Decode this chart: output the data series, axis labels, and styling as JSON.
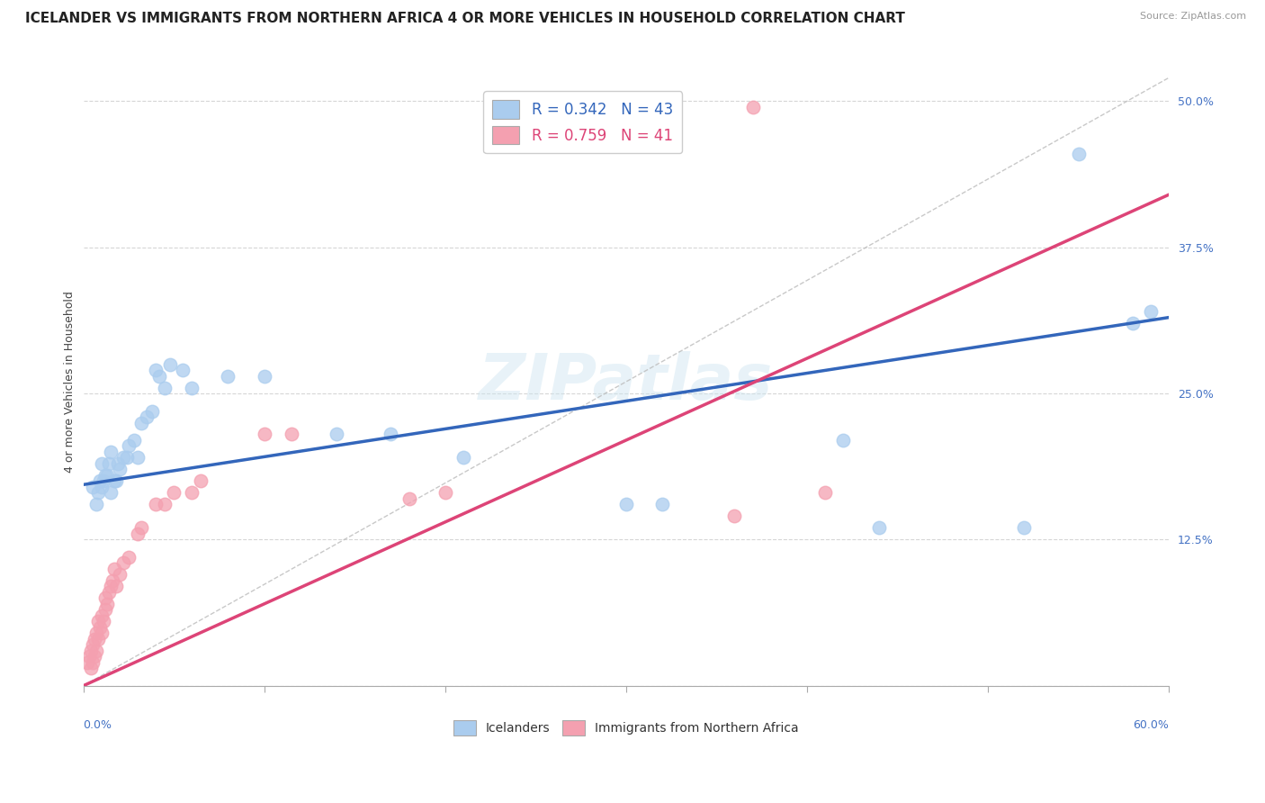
{
  "title": "ICELANDER VS IMMIGRANTS FROM NORTHERN AFRICA 4 OR MORE VEHICLES IN HOUSEHOLD CORRELATION CHART",
  "source": "Source: ZipAtlas.com",
  "ylabel": "4 or more Vehicles in Household",
  "yticks": [
    0.0,
    0.125,
    0.25,
    0.375,
    0.5
  ],
  "ytick_labels": [
    "",
    "12.5%",
    "25.0%",
    "37.5%",
    "50.0%"
  ],
  "xmin": 0.0,
  "xmax": 0.6,
  "ymin": 0.0,
  "ymax": 0.52,
  "legend1_label": "R = 0.342   N = 43",
  "legend2_label": "R = 0.759   N = 41",
  "legend_bottom": "Icelanders",
  "legend_bottom2": "Immigrants from Northern Africa",
  "blue_color": "#aaccee",
  "pink_color": "#f4a0b0",
  "blue_line_color": "#3366bb",
  "pink_line_color": "#dd4477",
  "blue_scatter": [
    [
      0.005,
      0.17
    ],
    [
      0.007,
      0.155
    ],
    [
      0.008,
      0.165
    ],
    [
      0.009,
      0.175
    ],
    [
      0.01,
      0.19
    ],
    [
      0.01,
      0.17
    ],
    [
      0.011,
      0.175
    ],
    [
      0.012,
      0.18
    ],
    [
      0.013,
      0.18
    ],
    [
      0.014,
      0.19
    ],
    [
      0.015,
      0.2
    ],
    [
      0.015,
      0.165
    ],
    [
      0.017,
      0.175
    ],
    [
      0.018,
      0.175
    ],
    [
      0.019,
      0.19
    ],
    [
      0.02,
      0.185
    ],
    [
      0.022,
      0.195
    ],
    [
      0.024,
      0.195
    ],
    [
      0.025,
      0.205
    ],
    [
      0.028,
      0.21
    ],
    [
      0.03,
      0.195
    ],
    [
      0.032,
      0.225
    ],
    [
      0.035,
      0.23
    ],
    [
      0.038,
      0.235
    ],
    [
      0.04,
      0.27
    ],
    [
      0.042,
      0.265
    ],
    [
      0.045,
      0.255
    ],
    [
      0.048,
      0.275
    ],
    [
      0.055,
      0.27
    ],
    [
      0.06,
      0.255
    ],
    [
      0.08,
      0.265
    ],
    [
      0.1,
      0.265
    ],
    [
      0.14,
      0.215
    ],
    [
      0.17,
      0.215
    ],
    [
      0.21,
      0.195
    ],
    [
      0.3,
      0.155
    ],
    [
      0.32,
      0.155
    ],
    [
      0.42,
      0.21
    ],
    [
      0.44,
      0.135
    ],
    [
      0.52,
      0.135
    ],
    [
      0.55,
      0.455
    ],
    [
      0.58,
      0.31
    ],
    [
      0.59,
      0.32
    ]
  ],
  "pink_scatter": [
    [
      0.002,
      0.02
    ],
    [
      0.003,
      0.025
    ],
    [
      0.004,
      0.015
    ],
    [
      0.004,
      0.03
    ],
    [
      0.005,
      0.02
    ],
    [
      0.005,
      0.035
    ],
    [
      0.006,
      0.04
    ],
    [
      0.006,
      0.025
    ],
    [
      0.007,
      0.03
    ],
    [
      0.007,
      0.045
    ],
    [
      0.008,
      0.04
    ],
    [
      0.008,
      0.055
    ],
    [
      0.009,
      0.05
    ],
    [
      0.01,
      0.045
    ],
    [
      0.01,
      0.06
    ],
    [
      0.011,
      0.055
    ],
    [
      0.012,
      0.065
    ],
    [
      0.012,
      0.075
    ],
    [
      0.013,
      0.07
    ],
    [
      0.014,
      0.08
    ],
    [
      0.015,
      0.085
    ],
    [
      0.016,
      0.09
    ],
    [
      0.017,
      0.1
    ],
    [
      0.018,
      0.085
    ],
    [
      0.02,
      0.095
    ],
    [
      0.022,
      0.105
    ],
    [
      0.025,
      0.11
    ],
    [
      0.03,
      0.13
    ],
    [
      0.032,
      0.135
    ],
    [
      0.04,
      0.155
    ],
    [
      0.045,
      0.155
    ],
    [
      0.05,
      0.165
    ],
    [
      0.06,
      0.165
    ],
    [
      0.065,
      0.175
    ],
    [
      0.1,
      0.215
    ],
    [
      0.115,
      0.215
    ],
    [
      0.18,
      0.16
    ],
    [
      0.2,
      0.165
    ],
    [
      0.37,
      0.495
    ],
    [
      0.41,
      0.165
    ],
    [
      0.36,
      0.145
    ]
  ],
  "blue_line": [
    0.0,
    0.172,
    0.6,
    0.315
  ],
  "pink_line": [
    0.0,
    0.0,
    0.6,
    0.42
  ],
  "diag_line": [
    0.0,
    0.0,
    0.6,
    0.52
  ],
  "watermark_text": "ZIPatlas",
  "title_fontsize": 11,
  "axis_label_fontsize": 9,
  "tick_fontsize": 9,
  "legend_fontsize": 12
}
